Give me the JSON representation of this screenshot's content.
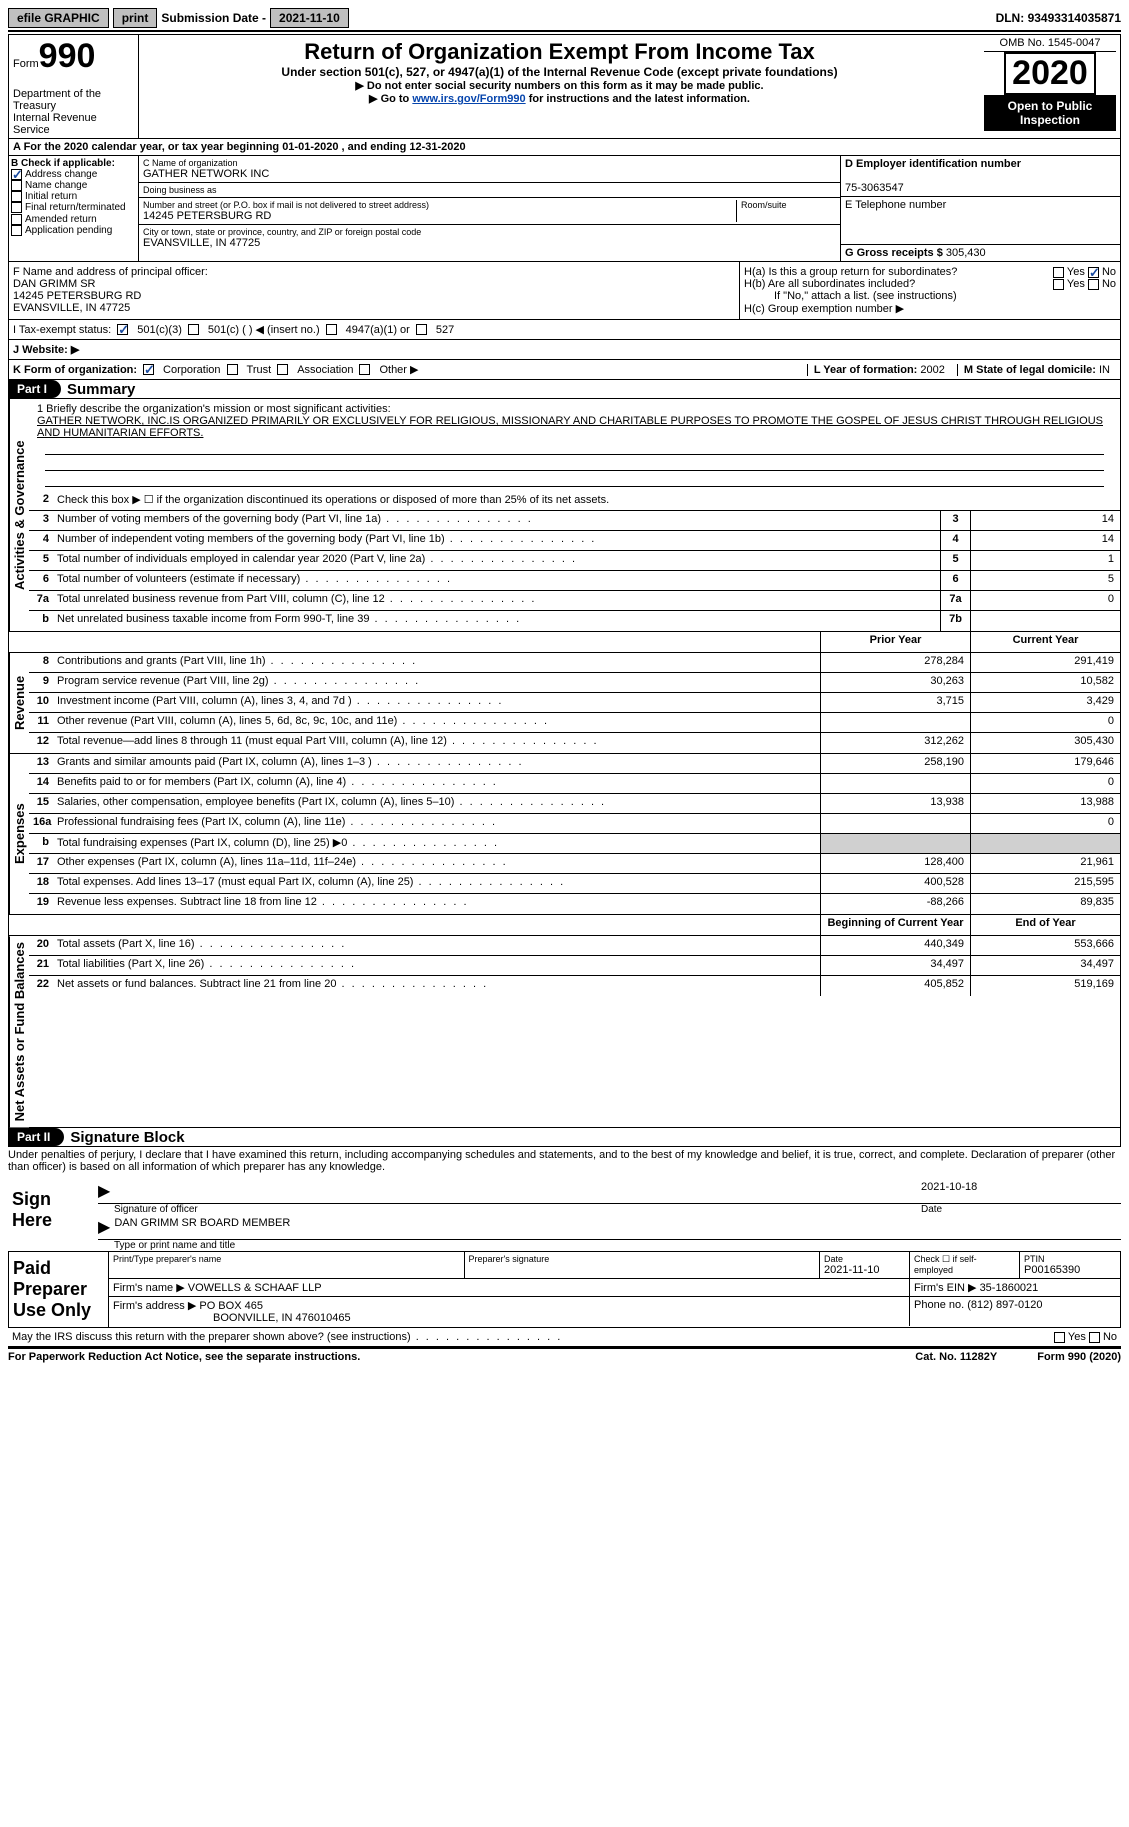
{
  "topbar": {
    "efile": "efile GRAPHIC",
    "print": "print",
    "sub_label": "Submission Date - ",
    "sub_date": "2021-11-10",
    "dln_label": "DLN: ",
    "dln": "93493314035871"
  },
  "header": {
    "form_label": "Form",
    "form_num": "990",
    "dept": "Department of the Treasury\nInternal Revenue Service",
    "title": "Return of Organization Exempt From Income Tax",
    "subtitle": "Under section 501(c), 527, or 4947(a)(1) of the Internal Revenue Code (except private foundations)",
    "instr1": "▶ Do not enter social security numbers on this form as it may be made public.",
    "instr2_pre": "▶ Go to ",
    "instr2_link": "www.irs.gov/Form990",
    "instr2_post": " for instructions and the latest information.",
    "omb": "OMB No. 1545-0047",
    "year": "2020",
    "open": "Open to Public Inspection"
  },
  "row_a": "A For the 2020 calendar year, or tax year beginning 01-01-2020   , and ending 12-31-2020",
  "box_b": {
    "label": "B Check if applicable:",
    "items": [
      "Address change",
      "Name change",
      "Initial return",
      "Final return/terminated",
      "Amended return",
      "Application pending"
    ],
    "checked_index": 0
  },
  "box_c": {
    "name_label": "C Name of organization",
    "name": "GATHER NETWORK INC",
    "dba_label": "Doing business as",
    "dba": "",
    "addr_label": "Number and street (or P.O. box if mail is not delivered to street address)",
    "room_label": "Room/suite",
    "addr": "14245 PETERSBURG RD",
    "city_label": "City or town, state or province, country, and ZIP or foreign postal code",
    "city": "EVANSVILLE, IN  47725"
  },
  "box_d": {
    "label": "D Employer identification number",
    "val": "75-3063547"
  },
  "box_e": {
    "label": "E Telephone number",
    "val": ""
  },
  "box_g": {
    "label": "G Gross receipts $",
    "val": "305,430"
  },
  "box_f": {
    "label": "F  Name and address of principal officer:",
    "name": "DAN GRIMM SR",
    "addr1": "14245 PETERSBURG RD",
    "addr2": "EVANSVILLE, IN  47725"
  },
  "box_h": {
    "ha": "H(a)  Is this a group return for subordinates?",
    "hb": "H(b)  Are all subordinates included?",
    "hb_note": "If \"No,\" attach a list. (see instructions)",
    "hc": "H(c)  Group exemption number ▶",
    "yes": "Yes",
    "no": "No"
  },
  "row_i": {
    "label": "I    Tax-exempt status:",
    "opts": [
      "501(c)(3)",
      "501(c) (  ) ◀ (insert no.)",
      "4947(a)(1) or",
      "527"
    ]
  },
  "row_j": {
    "label": "J    Website: ▶",
    "val": ""
  },
  "row_k": {
    "label": "K Form of organization:",
    "opts": [
      "Corporation",
      "Trust",
      "Association",
      "Other ▶"
    ],
    "l_label": "L Year of formation:",
    "l_val": "2002",
    "m_label": "M State of legal domicile:",
    "m_val": "IN"
  },
  "part1": {
    "tag": "Part I",
    "title": "Summary"
  },
  "mission": {
    "q": "1   Briefly describe the organization's mission or most significant activities:",
    "text": "GATHER NETWORK, INC.IS ORGANIZED PRIMARILY OR EXCLUSIVELY FOR RELIGIOUS, MISSIONARY AND CHARITABLE PURPOSES TO PROMOTE THE GOSPEL OF JESUS CHRIST THROUGH RELIGIOUS AND HUMANITARIAN EFFORTS."
  },
  "line2": "Check this box ▶ ☐  if the organization discontinued its operations or disposed of more than 25% of its net assets.",
  "gov_lines": [
    {
      "n": "3",
      "t": "Number of voting members of the governing body (Part VI, line 1a)",
      "box": "3",
      "v": "14"
    },
    {
      "n": "4",
      "t": "Number of independent voting members of the governing body (Part VI, line 1b)",
      "box": "4",
      "v": "14"
    },
    {
      "n": "5",
      "t": "Total number of individuals employed in calendar year 2020 (Part V, line 2a)",
      "box": "5",
      "v": "1"
    },
    {
      "n": "6",
      "t": "Total number of volunteers (estimate if necessary)",
      "box": "6",
      "v": "5"
    },
    {
      "n": "7a",
      "t": "Total unrelated business revenue from Part VIII, column (C), line 12",
      "box": "7a",
      "v": "0"
    },
    {
      "n": "b",
      "t": "Net unrelated business taxable income from Form 990-T, line 39",
      "box": "7b",
      "v": ""
    }
  ],
  "col_headers": {
    "prior": "Prior Year",
    "current": "Current Year"
  },
  "revenue": [
    {
      "n": "8",
      "t": "Contributions and grants (Part VIII, line 1h)",
      "p": "278,284",
      "c": "291,419"
    },
    {
      "n": "9",
      "t": "Program service revenue (Part VIII, line 2g)",
      "p": "30,263",
      "c": "10,582"
    },
    {
      "n": "10",
      "t": "Investment income (Part VIII, column (A), lines 3, 4, and 7d )",
      "p": "3,715",
      "c": "3,429"
    },
    {
      "n": "11",
      "t": "Other revenue (Part VIII, column (A), lines 5, 6d, 8c, 9c, 10c, and 11e)",
      "p": "",
      "c": "0"
    },
    {
      "n": "12",
      "t": "Total revenue—add lines 8 through 11 (must equal Part VIII, column (A), line 12)",
      "p": "312,262",
      "c": "305,430"
    }
  ],
  "expenses": [
    {
      "n": "13",
      "t": "Grants and similar amounts paid (Part IX, column (A), lines 1–3 )",
      "p": "258,190",
      "c": "179,646"
    },
    {
      "n": "14",
      "t": "Benefits paid to or for members (Part IX, column (A), line 4)",
      "p": "",
      "c": "0"
    },
    {
      "n": "15",
      "t": "Salaries, other compensation, employee benefits (Part IX, column (A), lines 5–10)",
      "p": "13,938",
      "c": "13,988"
    },
    {
      "n": "16a",
      "t": "Professional fundraising fees (Part IX, column (A), line 11e)",
      "p": "",
      "c": "0"
    },
    {
      "n": "b",
      "t": "Total fundraising expenses (Part IX, column (D), line 25) ▶0",
      "p": "SHADE",
      "c": "SHADE"
    },
    {
      "n": "17",
      "t": "Other expenses (Part IX, column (A), lines 11a–11d, 11f–24e)",
      "p": "128,400",
      "c": "21,961"
    },
    {
      "n": "18",
      "t": "Total expenses. Add lines 13–17 (must equal Part IX, column (A), line 25)",
      "p": "400,528",
      "c": "215,595"
    },
    {
      "n": "19",
      "t": "Revenue less expenses. Subtract line 18 from line 12",
      "p": "-88,266",
      "c": "89,835"
    }
  ],
  "net_headers": {
    "begin": "Beginning of Current Year",
    "end": "End of Year"
  },
  "net": [
    {
      "n": "20",
      "t": "Total assets (Part X, line 16)",
      "p": "440,349",
      "c": "553,666"
    },
    {
      "n": "21",
      "t": "Total liabilities (Part X, line 26)",
      "p": "34,497",
      "c": "34,497"
    },
    {
      "n": "22",
      "t": "Net assets or fund balances. Subtract line 21 from line 20",
      "p": "405,852",
      "c": "519,169"
    }
  ],
  "vtabs": {
    "gov": "Activities & Governance",
    "rev": "Revenue",
    "exp": "Expenses",
    "net": "Net Assets or Fund Balances"
  },
  "part2": {
    "tag": "Part II",
    "title": "Signature Block"
  },
  "penalties": "Under penalties of perjury, I declare that I have examined this return, including accompanying schedules and statements, and to the best of my knowledge and belief, it is true, correct, and complete. Declaration of preparer (other than officer) is based on all information of which preparer has any knowledge.",
  "sign": {
    "here": "Sign Here",
    "sig_label": "Signature of officer",
    "date_label": "Date",
    "date": "2021-10-18",
    "name": "DAN GRIMM SR BOARD MEMBER",
    "name_label": "Type or print name and title"
  },
  "prep": {
    "title": "Paid Preparer Use Only",
    "h1": "Print/Type preparer's name",
    "h2": "Preparer's signature",
    "h3": "Date",
    "h3v": "2021-11-10",
    "h4": "Check ☐ if self-employed",
    "h5": "PTIN",
    "ptin": "P00165390",
    "firm_label": "Firm's name    ▶",
    "firm": "VOWELLS & SCHAAF LLP",
    "ein_label": "Firm's EIN ▶",
    "ein": "35-1860021",
    "addr_label": "Firm's address ▶",
    "addr": "PO BOX 465",
    "addr2": "BOONVILLE, IN  476010465",
    "phone_label": "Phone no.",
    "phone": "(812) 897-0120"
  },
  "may_discuss": "May the IRS discuss this return with the preparer shown above? (see instructions)",
  "footer": {
    "left": "For Paperwork Reduction Act Notice, see the separate instructions.",
    "mid": "Cat. No. 11282Y",
    "right": "Form 990 (2020)"
  }
}
